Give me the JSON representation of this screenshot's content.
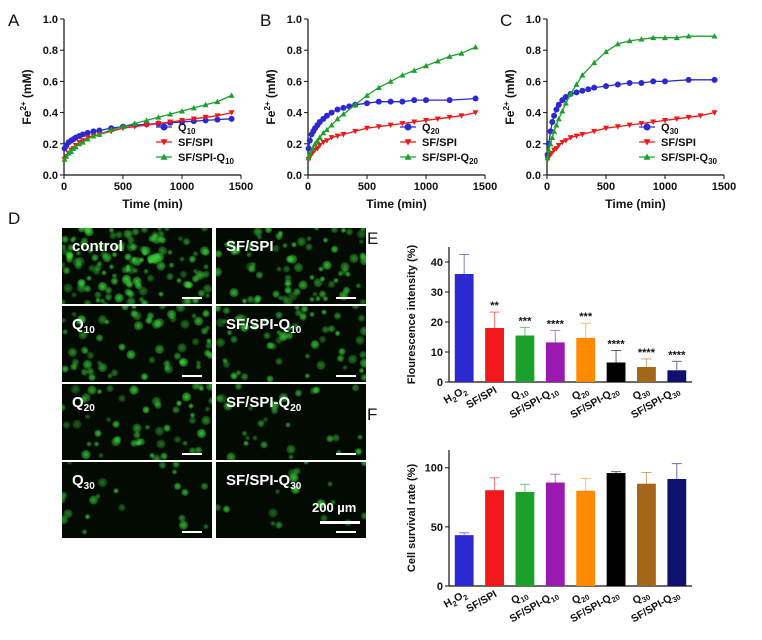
{
  "panel_letters": {
    "A": "A",
    "B": "B",
    "C": "C",
    "D": "D",
    "E": "E",
    "F": "F"
  },
  "colors": {
    "blue": "#2a2ad0",
    "red": "#f01818",
    "green": "#1ca02c",
    "purple": "#9a1ab0",
    "orange": "#ff8a00",
    "black": "#000000",
    "brown": "#a6661a",
    "navy": "#10106e",
    "fluor_green": "#3ad23a"
  },
  "micro": {
    "tiles": [
      {
        "label": "control",
        "sub": "",
        "density": 1.0
      },
      {
        "label": "SF/SPI",
        "sub": "",
        "density": 0.55
      },
      {
        "label": "Q",
        "sub": "10",
        "density": 0.45
      },
      {
        "label": "SF/SPI-Q",
        "sub": "10",
        "density": 0.42
      },
      {
        "label": "Q",
        "sub": "20",
        "density": 0.4
      },
      {
        "label": "SF/SPI-Q",
        "sub": "20",
        "density": 0.2
      },
      {
        "label": "Q",
        "sub": "30",
        "density": 0.15
      },
      {
        "label": "SF/SPI-Q",
        "sub": "30",
        "density": 0.13
      }
    ],
    "scale_label": "200 µm"
  },
  "chart_data": [
    {
      "id": "A",
      "type": "line",
      "xlabel": "Time (min)",
      "ylabel": "Fe2+ (mM)",
      "xlim": [
        0,
        1500
      ],
      "ylim": [
        0,
        1.0
      ],
      "xticks": [
        "0",
        "500",
        "1000",
        "1500"
      ],
      "yticks": [
        "0.0",
        "0.2",
        "0.4",
        "0.6",
        "0.8",
        "1.0"
      ],
      "legend": [
        {
          "base": "Q",
          "sub": "10",
          "marker": "circle",
          "color": "blue"
        },
        {
          "base": "SF/SPI",
          "sub": "",
          "marker": "tri-down",
          "color": "red"
        },
        {
          "base": "SF/SPI-Q",
          "sub": "10",
          "marker": "tri-up",
          "color": "green"
        }
      ],
      "series": [
        {
          "name": "Q10",
          "color": "blue",
          "marker": "circle",
          "x": [
            5,
            20,
            40,
            60,
            80,
            100,
            130,
            160,
            200,
            250,
            300,
            400,
            500,
            600,
            700,
            800,
            900,
            1000,
            1100,
            1200,
            1300,
            1420
          ],
          "y": [
            0.17,
            0.19,
            0.21,
            0.22,
            0.23,
            0.24,
            0.25,
            0.26,
            0.27,
            0.28,
            0.285,
            0.3,
            0.31,
            0.32,
            0.325,
            0.33,
            0.335,
            0.34,
            0.345,
            0.35,
            0.355,
            0.36
          ]
        },
        {
          "name": "SF/SPI",
          "color": "red",
          "marker": "tri-down",
          "x": [
            5,
            20,
            40,
            60,
            80,
            100,
            130,
            160,
            200,
            250,
            300,
            400,
            500,
            600,
            700,
            800,
            900,
            1000,
            1100,
            1200,
            1300,
            1420
          ],
          "y": [
            0.1,
            0.12,
            0.14,
            0.16,
            0.17,
            0.19,
            0.21,
            0.22,
            0.24,
            0.25,
            0.26,
            0.28,
            0.3,
            0.31,
            0.32,
            0.33,
            0.34,
            0.35,
            0.36,
            0.37,
            0.38,
            0.4
          ]
        },
        {
          "name": "SF/SPI-Q10",
          "color": "green",
          "marker": "tri-up",
          "x": [
            5,
            20,
            40,
            60,
            80,
            100,
            130,
            160,
            200,
            250,
            300,
            400,
            500,
            600,
            700,
            800,
            900,
            1000,
            1100,
            1200,
            1300,
            1420
          ],
          "y": [
            0.1,
            0.12,
            0.14,
            0.15,
            0.17,
            0.18,
            0.2,
            0.21,
            0.23,
            0.25,
            0.26,
            0.29,
            0.31,
            0.33,
            0.35,
            0.37,
            0.39,
            0.41,
            0.43,
            0.45,
            0.47,
            0.51
          ]
        }
      ]
    },
    {
      "id": "B",
      "type": "line",
      "xlabel": "Time (min)",
      "ylabel": "Fe2+ (mM)",
      "xlim": [
        0,
        1500
      ],
      "ylim": [
        0,
        1.0
      ],
      "xticks": [
        "0",
        "500",
        "1000",
        "1500"
      ],
      "yticks": [
        "0.0",
        "0.2",
        "0.4",
        "0.6",
        "0.8",
        "1.0"
      ],
      "legend": [
        {
          "base": "Q",
          "sub": "20",
          "marker": "circle",
          "color": "blue"
        },
        {
          "base": "SF/SPI",
          "sub": "",
          "marker": "tri-down",
          "color": "red"
        },
        {
          "base": "SF/SPI-Q",
          "sub": "20",
          "marker": "tri-up",
          "color": "green"
        }
      ],
      "series": [
        {
          "name": "Q20",
          "color": "blue",
          "marker": "circle",
          "x": [
            5,
            15,
            30,
            45,
            60,
            80,
            100,
            130,
            160,
            200,
            250,
            300,
            350,
            400,
            500,
            600,
            700,
            800,
            900,
            1000,
            1200,
            1420
          ],
          "y": [
            0.17,
            0.22,
            0.26,
            0.28,
            0.3,
            0.32,
            0.34,
            0.36,
            0.38,
            0.4,
            0.42,
            0.43,
            0.44,
            0.45,
            0.46,
            0.47,
            0.47,
            0.47,
            0.48,
            0.48,
            0.48,
            0.49
          ]
        },
        {
          "name": "SF/SPI",
          "color": "red",
          "marker": "tri-down",
          "x": [
            5,
            20,
            40,
            60,
            80,
            100,
            130,
            160,
            200,
            250,
            300,
            400,
            500,
            600,
            700,
            800,
            900,
            1000,
            1100,
            1200,
            1300,
            1420
          ],
          "y": [
            0.1,
            0.12,
            0.14,
            0.16,
            0.17,
            0.19,
            0.21,
            0.22,
            0.24,
            0.25,
            0.26,
            0.28,
            0.3,
            0.31,
            0.32,
            0.33,
            0.34,
            0.35,
            0.36,
            0.37,
            0.38,
            0.4
          ]
        },
        {
          "name": "SF/SPI-Q20",
          "color": "green",
          "marker": "tri-up",
          "x": [
            5,
            20,
            40,
            60,
            80,
            100,
            130,
            160,
            200,
            250,
            300,
            400,
            500,
            600,
            700,
            800,
            900,
            1000,
            1100,
            1200,
            1300,
            1420
          ],
          "y": [
            0.11,
            0.14,
            0.17,
            0.2,
            0.22,
            0.24,
            0.27,
            0.29,
            0.32,
            0.36,
            0.39,
            0.45,
            0.51,
            0.56,
            0.6,
            0.64,
            0.67,
            0.7,
            0.73,
            0.76,
            0.78,
            0.82
          ]
        }
      ]
    },
    {
      "id": "C",
      "type": "line",
      "xlabel": "Time (min)",
      "ylabel": "Fe2+ (mM)",
      "xlim": [
        0,
        1500
      ],
      "ylim": [
        0,
        1.0
      ],
      "xticks": [
        "0",
        "500",
        "1000",
        "1500"
      ],
      "yticks": [
        "0.0",
        "0.2",
        "0.4",
        "0.6",
        "0.8",
        "1.0"
      ],
      "legend": [
        {
          "base": "Q",
          "sub": "30",
          "marker": "circle",
          "color": "blue"
        },
        {
          "base": "SF/SPI",
          "sub": "",
          "marker": "tri-down",
          "color": "red"
        },
        {
          "base": "SF/SPI-Q",
          "sub": "30",
          "marker": "tri-up",
          "color": "green"
        }
      ],
      "series": [
        {
          "name": "Q30",
          "color": "blue",
          "marker": "circle",
          "x": [
            5,
            15,
            30,
            45,
            60,
            80,
            100,
            130,
            160,
            200,
            250,
            300,
            350,
            400,
            500,
            600,
            700,
            800,
            900,
            1000,
            1200,
            1420
          ],
          "y": [
            0.13,
            0.2,
            0.28,
            0.34,
            0.38,
            0.42,
            0.45,
            0.48,
            0.5,
            0.52,
            0.53,
            0.54,
            0.55,
            0.56,
            0.57,
            0.58,
            0.59,
            0.59,
            0.6,
            0.6,
            0.61,
            0.61
          ]
        },
        {
          "name": "SF/SPI",
          "color": "red",
          "marker": "tri-down",
          "x": [
            5,
            20,
            40,
            60,
            80,
            100,
            130,
            160,
            200,
            250,
            300,
            400,
            500,
            600,
            700,
            800,
            900,
            1000,
            1100,
            1200,
            1300,
            1420
          ],
          "y": [
            0.1,
            0.12,
            0.14,
            0.16,
            0.17,
            0.19,
            0.21,
            0.22,
            0.24,
            0.25,
            0.26,
            0.28,
            0.3,
            0.31,
            0.32,
            0.33,
            0.34,
            0.35,
            0.36,
            0.37,
            0.38,
            0.4
          ]
        },
        {
          "name": "SF/SPI-Q30",
          "color": "green",
          "marker": "tri-up",
          "x": [
            5,
            15,
            30,
            45,
            60,
            80,
            100,
            130,
            160,
            200,
            250,
            300,
            400,
            500,
            600,
            700,
            800,
            900,
            1000,
            1100,
            1200,
            1420
          ],
          "y": [
            0.11,
            0.16,
            0.2,
            0.24,
            0.28,
            0.32,
            0.36,
            0.41,
            0.46,
            0.52,
            0.58,
            0.64,
            0.72,
            0.79,
            0.84,
            0.86,
            0.87,
            0.88,
            0.88,
            0.88,
            0.89,
            0.89
          ]
        }
      ]
    },
    {
      "id": "E",
      "type": "bar",
      "ylabel": "Flourescence intensity (%)",
      "ylim": [
        0,
        45
      ],
      "yticks": [
        "0",
        "10",
        "20",
        "30",
        "40"
      ],
      "categories": [
        {
          "base": "H",
          "mid": "2",
          "tail": "O",
          "sub": "2"
        },
        {
          "base": "SF/SPI",
          "sub": ""
        },
        {
          "base": "Q",
          "sub": "10"
        },
        {
          "base": "SF/SPI-Q",
          "sub": "10"
        },
        {
          "base": "Q",
          "sub": "20"
        },
        {
          "base": "SF/SPI-Q",
          "sub": "20"
        },
        {
          "base": "Q",
          "sub": "30"
        },
        {
          "base": "SF/SPI-Q",
          "sub": "30"
        }
      ],
      "values": [
        36,
        18,
        15.5,
        13.2,
        14.7,
        6.5,
        5,
        3.9
      ],
      "errors": [
        6.5,
        5.3,
        2.7,
        4,
        4.9,
        4,
        2.7,
        3
      ],
      "bar_colors": [
        "blue",
        "red",
        "green",
        "purple",
        "orange",
        "black",
        "brown",
        "navy"
      ],
      "significance": [
        "",
        "**",
        "***",
        "****",
        "***",
        "****",
        "****",
        "****"
      ]
    },
    {
      "id": "F",
      "type": "bar",
      "ylabel": "Cell survival rate (%)",
      "ylim": [
        0,
        115
      ],
      "yticks": [
        "0",
        "50",
        "100"
      ],
      "categories": [
        {
          "base": "H",
          "mid": "2",
          "tail": "O",
          "sub": "2"
        },
        {
          "base": "SF/SPI",
          "sub": ""
        },
        {
          "base": "Q",
          "sub": "10"
        },
        {
          "base": "SF/SPI-Q",
          "sub": "10"
        },
        {
          "base": "Q",
          "sub": "20"
        },
        {
          "base": "SF/SPI-Q",
          "sub": "20"
        },
        {
          "base": "Q",
          "sub": "30"
        },
        {
          "base": "SF/SPI-Q",
          "sub": "30"
        }
      ],
      "values": [
        43,
        81,
        79.5,
        87.5,
        80.5,
        95.5,
        86.5,
        90.5
      ],
      "errors": [
        2,
        10.5,
        6.5,
        7,
        10.5,
        1.2,
        9.5,
        13
      ],
      "bar_colors": [
        "blue",
        "red",
        "green",
        "purple",
        "orange",
        "black",
        "brown",
        "navy"
      ],
      "significance": [
        "",
        "",
        "",
        "",
        "",
        "",
        "",
        ""
      ]
    }
  ]
}
